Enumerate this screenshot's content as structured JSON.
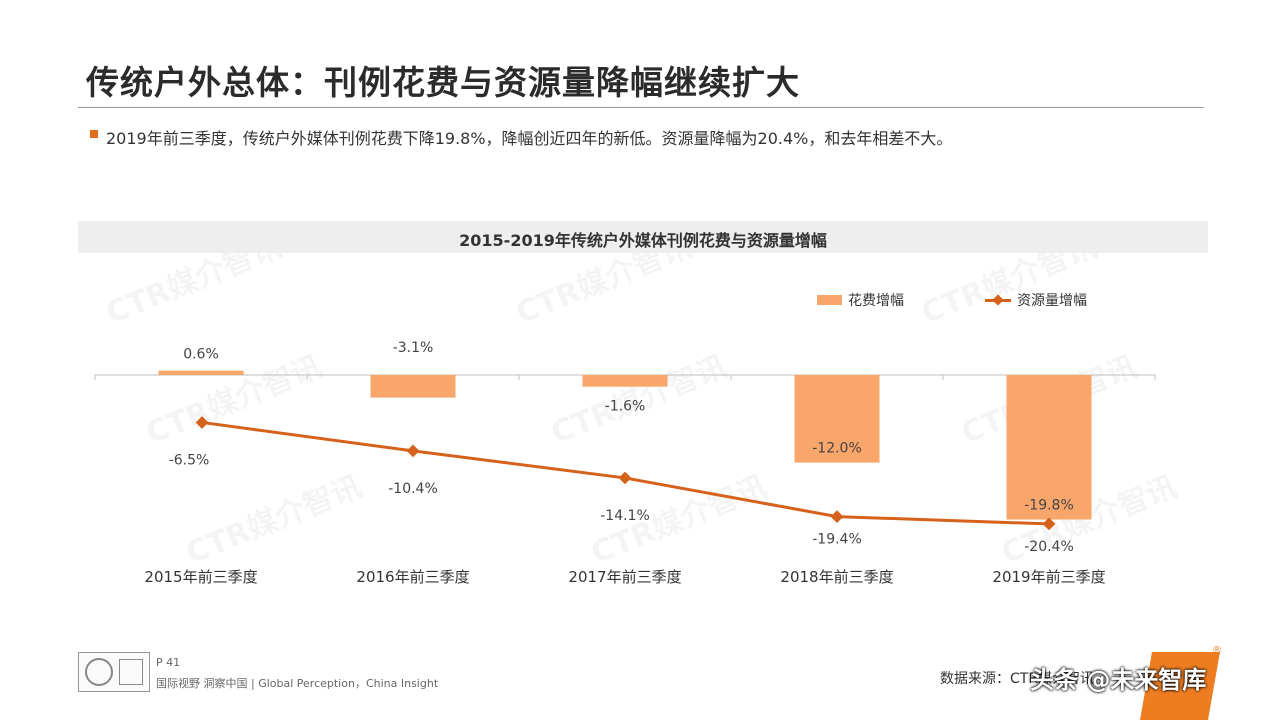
{
  "header": {
    "title": "传统户外总体：刊例花费与资源量降幅继续扩大",
    "summary": "2019年前三季度，传统户外媒体刊例花费下降19.8%，降幅创近四年的新低。资源量降幅为20.4%，和去年相差不大。"
  },
  "watermark": "CTR媒介智讯",
  "chart_data": {
    "type": "bar",
    "title": "2015-2019年传统户外媒体刊例花费与资源量增幅",
    "categories": [
      "2015年前三季度",
      "2016年前三季度",
      "2017年前三季度",
      "2018年前三季度",
      "2019年前三季度"
    ],
    "series": [
      {
        "name": "花费增幅",
        "kind": "bar",
        "color": "#f9a66b",
        "values": [
          0.6,
          -3.1,
          -1.6,
          -12.0,
          -19.8
        ],
        "labels": [
          "0.6%",
          "-3.1%",
          "-1.6%",
          "-12.0%",
          "-19.8%"
        ]
      },
      {
        "name": "资源量增幅",
        "kind": "line",
        "color": "#d5621b",
        "values": [
          -6.5,
          -10.4,
          -14.1,
          -19.4,
          -20.4
        ],
        "labels": [
          "-6.5%",
          "-10.4%",
          "-14.1%",
          "-19.4%",
          "-20.4%"
        ]
      }
    ],
    "legend_position": "top-right",
    "grid": false
  },
  "footer": {
    "page": "P 41",
    "tagline": "国际视野 洞察中国 | Global Perception，China Insight",
    "source": "数据来源：CTR媒介智讯",
    "overlay": "头条 @未来智库"
  }
}
